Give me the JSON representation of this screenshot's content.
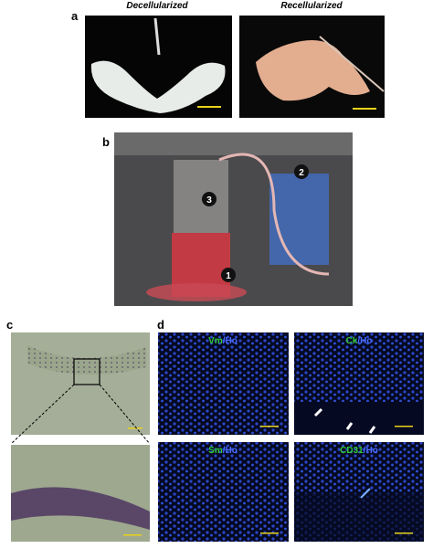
{
  "figure": {
    "panel_a": {
      "label": "a",
      "titles": [
        "Decellularized",
        "Recellularized"
      ]
    },
    "panel_b": {
      "label": "b",
      "markers": [
        "1",
        "2",
        "3"
      ]
    },
    "panel_c": {
      "label": "c"
    },
    "panel_d": {
      "label": "d",
      "images": [
        {
          "marker": "Vm",
          "stain": "/Ho"
        },
        {
          "marker": "Ck",
          "stain": "/Ho"
        },
        {
          "marker": "Sm",
          "stain": "/Ho"
        },
        {
          "marker": "CD31",
          "stain": "/Ho"
        }
      ]
    }
  }
}
